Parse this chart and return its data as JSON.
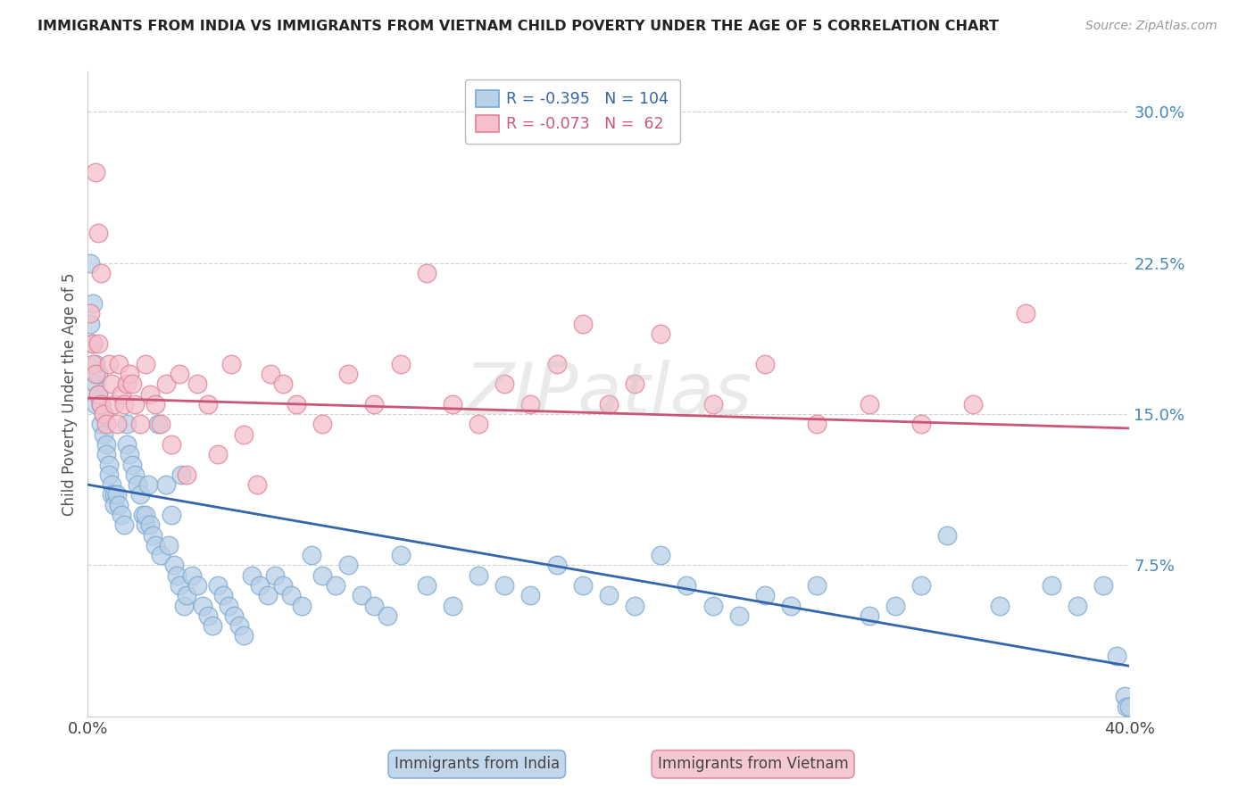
{
  "title": "IMMIGRANTS FROM INDIA VS IMMIGRANTS FROM VIETNAM CHILD POVERTY UNDER THE AGE OF 5 CORRELATION CHART",
  "source": "Source: ZipAtlas.com",
  "ylabel": "Child Poverty Under the Age of 5",
  "yticks": [
    0.0,
    0.075,
    0.15,
    0.225,
    0.3
  ],
  "ytick_labels": [
    "",
    "7.5%",
    "15.0%",
    "22.5%",
    "30.0%"
  ],
  "xlim": [
    0.0,
    0.4
  ],
  "ylim": [
    0.0,
    0.32
  ],
  "background_color": "#ffffff",
  "watermark": "ZIPatlas",
  "india_color": "#b8d0e8",
  "india_edge_color": "#7aa8d0",
  "vietnam_color": "#f4c0cc",
  "vietnam_edge_color": "#e08098",
  "india_line_color": "#3366aa",
  "vietnam_line_color": "#cc5577",
  "legend_india_label_r": "R = -0.395",
  "legend_india_label_n": "N = 104",
  "legend_vietnam_label_r": "R = -0.073",
  "legend_vietnam_label_n": "N =  62",
  "india_line_start_y": 0.115,
  "india_line_end_y": 0.025,
  "vietnam_line_start_y": 0.158,
  "vietnam_line_end_y": 0.143,
  "india_x": [
    0.001,
    0.001,
    0.002,
    0.002,
    0.003,
    0.003,
    0.003,
    0.004,
    0.004,
    0.005,
    0.005,
    0.006,
    0.006,
    0.007,
    0.007,
    0.008,
    0.008,
    0.009,
    0.009,
    0.01,
    0.01,
    0.011,
    0.012,
    0.013,
    0.014,
    0.015,
    0.015,
    0.016,
    0.017,
    0.018,
    0.019,
    0.02,
    0.021,
    0.022,
    0.022,
    0.023,
    0.024,
    0.025,
    0.026,
    0.027,
    0.028,
    0.03,
    0.031,
    0.032,
    0.033,
    0.034,
    0.035,
    0.036,
    0.037,
    0.038,
    0.04,
    0.042,
    0.044,
    0.046,
    0.048,
    0.05,
    0.052,
    0.054,
    0.056,
    0.058,
    0.06,
    0.063,
    0.066,
    0.069,
    0.072,
    0.075,
    0.078,
    0.082,
    0.086,
    0.09,
    0.095,
    0.1,
    0.105,
    0.11,
    0.115,
    0.12,
    0.13,
    0.14,
    0.15,
    0.16,
    0.17,
    0.18,
    0.19,
    0.2,
    0.21,
    0.22,
    0.23,
    0.24,
    0.25,
    0.26,
    0.27,
    0.28,
    0.3,
    0.31,
    0.32,
    0.33,
    0.35,
    0.37,
    0.38,
    0.39,
    0.395,
    0.398,
    0.399,
    0.4
  ],
  "india_y": [
    0.225,
    0.195,
    0.205,
    0.185,
    0.175,
    0.165,
    0.155,
    0.17,
    0.16,
    0.155,
    0.145,
    0.15,
    0.14,
    0.135,
    0.13,
    0.125,
    0.12,
    0.115,
    0.11,
    0.11,
    0.105,
    0.11,
    0.105,
    0.1,
    0.095,
    0.145,
    0.135,
    0.13,
    0.125,
    0.12,
    0.115,
    0.11,
    0.1,
    0.095,
    0.1,
    0.115,
    0.095,
    0.09,
    0.085,
    0.145,
    0.08,
    0.115,
    0.085,
    0.1,
    0.075,
    0.07,
    0.065,
    0.12,
    0.055,
    0.06,
    0.07,
    0.065,
    0.055,
    0.05,
    0.045,
    0.065,
    0.06,
    0.055,
    0.05,
    0.045,
    0.04,
    0.07,
    0.065,
    0.06,
    0.07,
    0.065,
    0.06,
    0.055,
    0.08,
    0.07,
    0.065,
    0.075,
    0.06,
    0.055,
    0.05,
    0.08,
    0.065,
    0.055,
    0.07,
    0.065,
    0.06,
    0.075,
    0.065,
    0.06,
    0.055,
    0.08,
    0.065,
    0.055,
    0.05,
    0.06,
    0.055,
    0.065,
    0.05,
    0.055,
    0.065,
    0.09,
    0.055,
    0.065,
    0.055,
    0.065,
    0.03,
    0.01,
    0.005,
    0.005
  ],
  "vietnam_x": [
    0.001,
    0.002,
    0.002,
    0.003,
    0.004,
    0.004,
    0.005,
    0.006,
    0.007,
    0.008,
    0.009,
    0.01,
    0.011,
    0.012,
    0.013,
    0.014,
    0.015,
    0.016,
    0.017,
    0.018,
    0.02,
    0.022,
    0.024,
    0.026,
    0.028,
    0.03,
    0.032,
    0.035,
    0.038,
    0.042,
    0.046,
    0.05,
    0.055,
    0.06,
    0.065,
    0.07,
    0.075,
    0.08,
    0.09,
    0.1,
    0.11,
    0.12,
    0.13,
    0.14,
    0.15,
    0.16,
    0.17,
    0.18,
    0.19,
    0.2,
    0.21,
    0.22,
    0.24,
    0.26,
    0.28,
    0.3,
    0.32,
    0.34,
    0.36,
    0.003,
    0.004,
    0.005
  ],
  "vietnam_y": [
    0.2,
    0.185,
    0.175,
    0.17,
    0.185,
    0.16,
    0.155,
    0.15,
    0.145,
    0.175,
    0.165,
    0.155,
    0.145,
    0.175,
    0.16,
    0.155,
    0.165,
    0.17,
    0.165,
    0.155,
    0.145,
    0.175,
    0.16,
    0.155,
    0.145,
    0.165,
    0.135,
    0.17,
    0.12,
    0.165,
    0.155,
    0.13,
    0.175,
    0.14,
    0.115,
    0.17,
    0.165,
    0.155,
    0.145,
    0.17,
    0.155,
    0.175,
    0.22,
    0.155,
    0.145,
    0.165,
    0.155,
    0.175,
    0.195,
    0.155,
    0.165,
    0.19,
    0.155,
    0.175,
    0.145,
    0.155,
    0.145,
    0.155,
    0.2,
    0.27,
    0.24,
    0.22
  ]
}
